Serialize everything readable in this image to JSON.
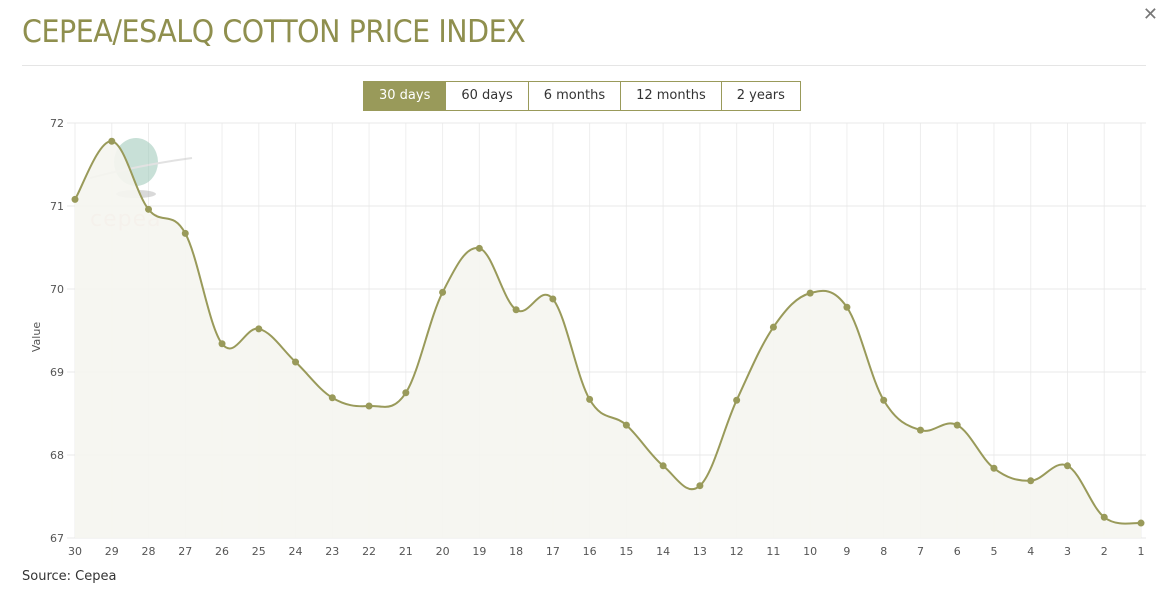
{
  "header": {
    "title": "CEPEA/ESALQ COTTON PRICE INDEX",
    "close_icon": "close-icon"
  },
  "ranges": [
    {
      "label": "30 days",
      "active": true
    },
    {
      "label": "60 days"
    },
    {
      "label": "6 months"
    },
    {
      "label": "12 months"
    },
    {
      "label": "2 years"
    }
  ],
  "footer": {
    "source": "Source: Cepea"
  },
  "watermark": "cepea",
  "chart_data": {
    "type": "area",
    "title": "",
    "xlabel": "",
    "ylabel": "Value",
    "ylim": [
      67,
      72
    ],
    "yticks": [
      "67",
      "68",
      "69",
      "70",
      "71",
      "72"
    ],
    "categories": [
      "30",
      "29",
      "28",
      "27",
      "26",
      "25",
      "24",
      "23",
      "22",
      "21",
      "20",
      "19",
      "18",
      "17",
      "16",
      "15",
      "14",
      "13",
      "12",
      "11",
      "10",
      "9",
      "8",
      "7",
      "6",
      "5",
      "4",
      "3",
      "2",
      "1"
    ],
    "values": [
      71.08,
      71.78,
      70.96,
      70.67,
      69.34,
      69.52,
      69.12,
      68.69,
      68.59,
      68.75,
      69.96,
      70.49,
      69.75,
      69.88,
      68.67,
      68.36,
      67.87,
      67.63,
      68.66,
      69.54,
      69.95,
      69.78,
      68.66,
      68.3,
      68.36,
      67.84,
      67.69,
      67.87,
      67.25,
      67.18
    ],
    "line_color": "#999a5a",
    "fill_color": "#f5f5ef",
    "grid": true
  }
}
